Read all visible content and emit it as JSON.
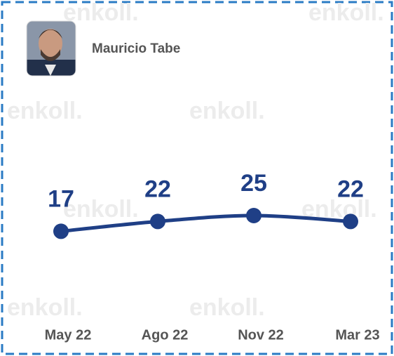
{
  "header": {
    "name": "Mauricio Tabe",
    "watermark": "enkoll."
  },
  "chart_data": {
    "type": "line",
    "categories": [
      "May 22",
      "Ago 22",
      "Nov 22",
      "Mar 23"
    ],
    "values": [
      17,
      22,
      25,
      22
    ],
    "color": "#1f3f86",
    "ylim": [
      0,
      100
    ]
  }
}
